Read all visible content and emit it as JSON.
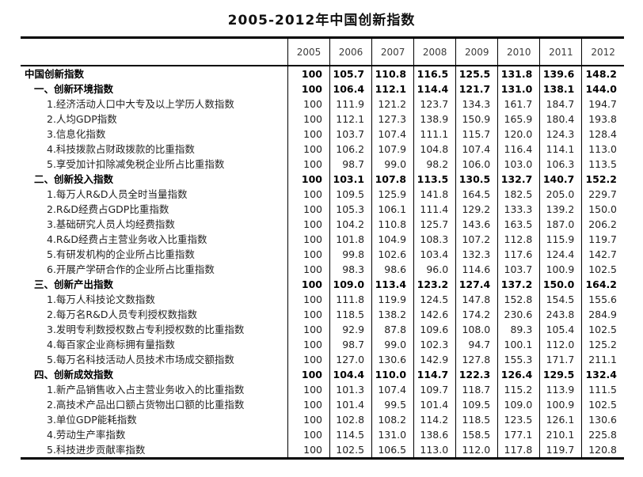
{
  "chart_data": {
    "type": "table",
    "title": "2005-2012年中国创新指数",
    "columns": [
      "2005",
      "2006",
      "2007",
      "2008",
      "2009",
      "2010",
      "2011",
      "2012"
    ],
    "rows": [
      {
        "label": "中国创新指数",
        "level": 0,
        "bold": true,
        "values": [
          "100",
          "105.7",
          "110.8",
          "116.5",
          "125.5",
          "131.8",
          "139.6",
          "148.2"
        ]
      },
      {
        "label": "一、创新环境指数",
        "level": 1,
        "bold": true,
        "values": [
          "100",
          "106.4",
          "112.1",
          "114.4",
          "121.7",
          "131.0",
          "138.1",
          "144.0"
        ]
      },
      {
        "label": "1.经济活动人口中大专及以上学历人数指数",
        "level": 2,
        "bold": false,
        "values": [
          "100",
          "111.9",
          "121.2",
          "123.7",
          "134.3",
          "161.7",
          "184.7",
          "194.7"
        ]
      },
      {
        "label": "2.人均GDP指数",
        "level": 2,
        "bold": false,
        "values": [
          "100",
          "112.1",
          "127.3",
          "138.9",
          "150.9",
          "165.9",
          "180.4",
          "193.8"
        ]
      },
      {
        "label": "3.信息化指数",
        "level": 2,
        "bold": false,
        "values": [
          "100",
          "103.7",
          "107.4",
          "111.1",
          "115.7",
          "120.0",
          "124.3",
          "128.4"
        ]
      },
      {
        "label": "4.科技拨款占财政拨款的比重指数",
        "level": 2,
        "bold": false,
        "values": [
          "100",
          "106.2",
          "107.9",
          "104.8",
          "107.4",
          "116.4",
          "114.1",
          "113.0"
        ]
      },
      {
        "label": "5.享受加计扣除减免税企业所占比重指数",
        "level": 2,
        "bold": false,
        "values": [
          "100",
          "98.7",
          "99.0",
          "98.2",
          "106.0",
          "103.0",
          "106.3",
          "113.5"
        ]
      },
      {
        "label": "二、创新投入指数",
        "level": 1,
        "bold": true,
        "values": [
          "100",
          "103.1",
          "107.8",
          "113.5",
          "130.5",
          "132.7",
          "140.7",
          "152.2"
        ]
      },
      {
        "label": "1.每万人R&D人员全时当量指数",
        "level": 2,
        "bold": false,
        "values": [
          "100",
          "109.5",
          "125.9",
          "141.8",
          "164.5",
          "182.5",
          "205.0",
          "229.7"
        ]
      },
      {
        "label": "2.R&D经费占GDP比重指数",
        "level": 2,
        "bold": false,
        "values": [
          "100",
          "105.3",
          "106.1",
          "111.4",
          "129.2",
          "133.3",
          "139.2",
          "150.0"
        ]
      },
      {
        "label": "3.基础研究人员人均经费指数",
        "level": 2,
        "bold": false,
        "values": [
          "100",
          "104.2",
          "110.8",
          "125.7",
          "143.6",
          "163.5",
          "187.0",
          "206.2"
        ]
      },
      {
        "label": "4.R&D经费占主营业务收入比重指数",
        "level": 2,
        "bold": false,
        "values": [
          "100",
          "101.8",
          "104.9",
          "108.3",
          "107.2",
          "112.8",
          "115.9",
          "119.7"
        ]
      },
      {
        "label": "5.有研发机构的企业所占比重指数",
        "level": 2,
        "bold": false,
        "values": [
          "100",
          "99.8",
          "102.6",
          "103.4",
          "132.3",
          "117.6",
          "124.4",
          "142.7"
        ]
      },
      {
        "label": "6.开展产学研合作的企业所占比重指数",
        "level": 2,
        "bold": false,
        "values": [
          "100",
          "98.3",
          "98.6",
          "96.0",
          "114.6",
          "103.7",
          "100.9",
          "102.5"
        ]
      },
      {
        "label": "三、创新产出指数",
        "level": 1,
        "bold": true,
        "values": [
          "100",
          "109.0",
          "113.4",
          "123.2",
          "127.4",
          "137.2",
          "150.0",
          "164.2"
        ]
      },
      {
        "label": "1.每万人科技论文数指数",
        "level": 2,
        "bold": false,
        "values": [
          "100",
          "111.8",
          "119.9",
          "124.5",
          "147.8",
          "152.8",
          "154.5",
          "155.6"
        ]
      },
      {
        "label": "2.每万名R&D人员专利授权数指数",
        "level": 2,
        "bold": false,
        "values": [
          "100",
          "118.5",
          "138.2",
          "142.6",
          "174.2",
          "230.6",
          "243.8",
          "284.9"
        ]
      },
      {
        "label": "3.发明专利数授权数占专利授权数的比重指数",
        "level": 2,
        "bold": false,
        "values": [
          "100",
          "92.9",
          "87.8",
          "109.6",
          "108.0",
          "89.3",
          "105.4",
          "102.5"
        ]
      },
      {
        "label": "4.每百家企业商标拥有量指数",
        "level": 2,
        "bold": false,
        "values": [
          "100",
          "98.7",
          "99.0",
          "102.3",
          "94.7",
          "100.1",
          "112.0",
          "125.2"
        ]
      },
      {
        "label": "5.每万名科技活动人员技术市场成交额指数",
        "level": 2,
        "bold": false,
        "values": [
          "100",
          "127.0",
          "130.6",
          "142.9",
          "127.8",
          "155.3",
          "171.7",
          "211.1"
        ]
      },
      {
        "label": "四、创新成效指数",
        "level": 1,
        "bold": true,
        "values": [
          "100",
          "104.4",
          "110.0",
          "114.7",
          "122.3",
          "126.4",
          "129.5",
          "132.4"
        ]
      },
      {
        "label": "1.新产品销售收入占主营业务收入的比重指数",
        "level": 2,
        "bold": false,
        "values": [
          "100",
          "101.3",
          "107.4",
          "109.7",
          "118.7",
          "115.2",
          "113.9",
          "111.5"
        ]
      },
      {
        "label": "2.高技术产品出口额占货物出口额的比重指数",
        "level": 2,
        "bold": false,
        "values": [
          "100",
          "101.4",
          "99.5",
          "101.4",
          "109.5",
          "109.0",
          "100.9",
          "102.5"
        ]
      },
      {
        "label": "3.单位GDP能耗指数",
        "level": 2,
        "bold": false,
        "values": [
          "100",
          "102.8",
          "108.2",
          "114.2",
          "118.5",
          "123.5",
          "126.1",
          "130.6"
        ]
      },
      {
        "label": "4.劳动生产率指数",
        "level": 2,
        "bold": false,
        "values": [
          "100",
          "114.5",
          "131.0",
          "138.6",
          "158.5",
          "177.1",
          "210.1",
          "225.8"
        ]
      },
      {
        "label": "5.科技进步贡献率指数",
        "level": 2,
        "bold": false,
        "values": [
          "100",
          "102.5",
          "106.5",
          "113.0",
          "112.0",
          "117.8",
          "119.7",
          "120.8"
        ]
      }
    ],
    "layout": {
      "base_year_value": 100,
      "grid": "vertical-column-separators",
      "border_style": "thick-top-bottom-thin-header-rule"
    }
  }
}
